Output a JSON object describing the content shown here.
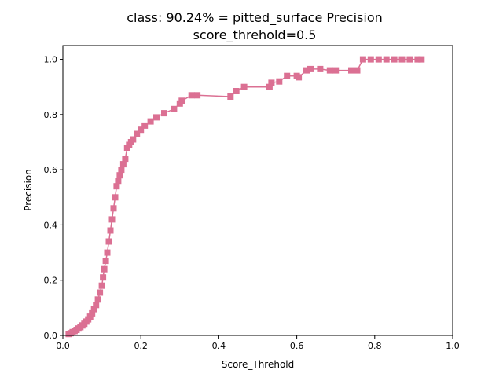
{
  "chart_data": {
    "type": "line",
    "title_line1": "class: 90.24% = pitted_surface Precision",
    "title_line2": "score_threhold=0.5",
    "xlabel": "Score_Threhold",
    "ylabel": "Precision",
    "xlim": [
      0,
      1
    ],
    "ylim": [
      0,
      1.05
    ],
    "x_ticks": [
      "0.0",
      "0.2",
      "0.4",
      "0.6",
      "0.8",
      "1.0"
    ],
    "y_ticks": [
      "0.0",
      "0.2",
      "0.4",
      "0.6",
      "0.8",
      "1.0"
    ],
    "grid": false,
    "marker": "square",
    "color": "#db7093",
    "x": [
      0.015,
      0.02,
      0.025,
      0.03,
      0.035,
      0.04,
      0.045,
      0.05,
      0.055,
      0.06,
      0.065,
      0.07,
      0.075,
      0.08,
      0.085,
      0.09,
      0.095,
      0.1,
      0.103,
      0.106,
      0.11,
      0.114,
      0.118,
      0.122,
      0.126,
      0.13,
      0.134,
      0.138,
      0.142,
      0.146,
      0.15,
      0.155,
      0.16,
      0.165,
      0.17,
      0.175,
      0.18,
      0.19,
      0.2,
      0.21,
      0.225,
      0.24,
      0.26,
      0.285,
      0.3,
      0.305,
      0.33,
      0.345,
      0.43,
      0.445,
      0.465,
      0.53,
      0.535,
      0.555,
      0.575,
      0.6,
      0.605,
      0.625,
      0.635,
      0.66,
      0.685,
      0.7,
      0.74,
      0.755,
      0.77,
      0.79,
      0.81,
      0.83,
      0.85,
      0.87,
      0.89,
      0.91,
      0.92
    ],
    "y": [
      0.005,
      0.008,
      0.012,
      0.016,
      0.02,
      0.025,
      0.03,
      0.036,
      0.042,
      0.05,
      0.058,
      0.068,
      0.08,
      0.095,
      0.11,
      0.13,
      0.155,
      0.18,
      0.21,
      0.24,
      0.27,
      0.3,
      0.34,
      0.38,
      0.42,
      0.46,
      0.5,
      0.54,
      0.56,
      0.58,
      0.6,
      0.62,
      0.64,
      0.68,
      0.69,
      0.7,
      0.71,
      0.73,
      0.745,
      0.76,
      0.775,
      0.79,
      0.805,
      0.82,
      0.84,
      0.85,
      0.87,
      0.87,
      0.865,
      0.885,
      0.9,
      0.9,
      0.915,
      0.92,
      0.94,
      0.94,
      0.935,
      0.96,
      0.965,
      0.965,
      0.96,
      0.96,
      0.96,
      0.96,
      1.0,
      1.0,
      1.0,
      1.0,
      1.0,
      1.0,
      1.0,
      1.0,
      1.0
    ]
  }
}
